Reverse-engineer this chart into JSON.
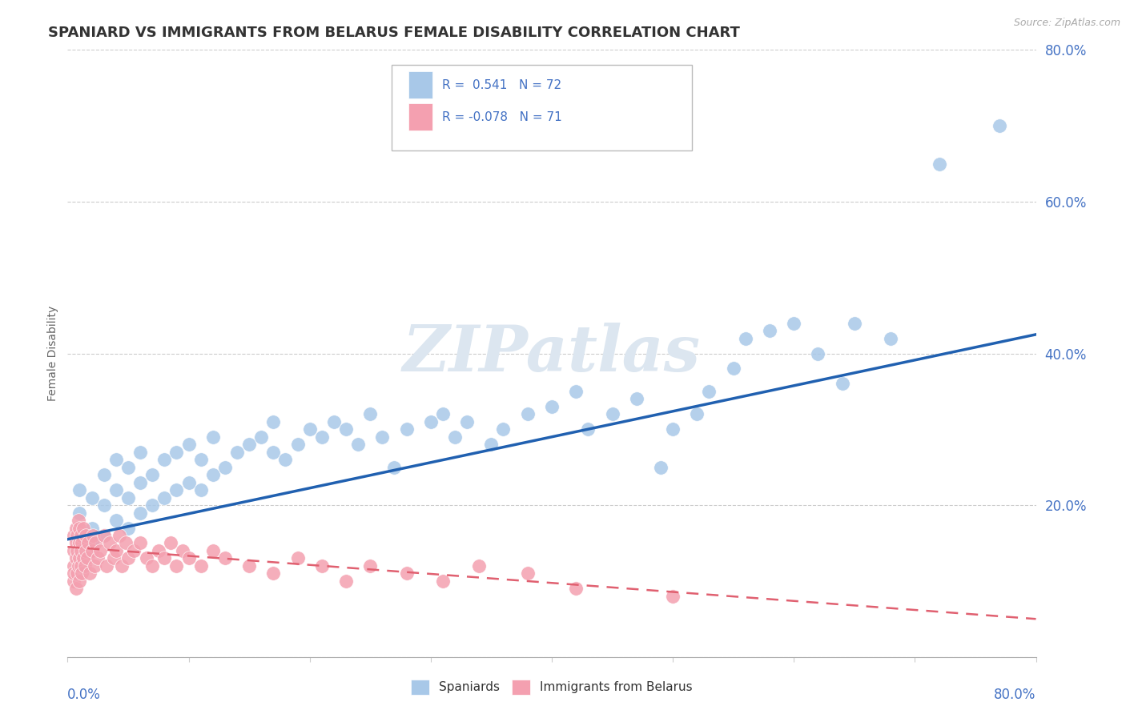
{
  "title": "SPANIARD VS IMMIGRANTS FROM BELARUS FEMALE DISABILITY CORRELATION CHART",
  "source": "Source: ZipAtlas.com",
  "ylabel": "Female Disability",
  "xlim": [
    0,
    0.8
  ],
  "ylim": [
    0,
    0.8
  ],
  "blue_color": "#a8c8e8",
  "pink_color": "#f4a0b0",
  "line_blue": "#2060b0",
  "line_pink": "#e06070",
  "axis_color": "#4472c4",
  "watermark_color": "#dce6f0",
  "legend_r1": "R =  0.541",
  "legend_n1": "N = 72",
  "legend_r2": "R = -0.078",
  "legend_n2": "N = 71",
  "spaniards_x": [
    0.01,
    0.01,
    0.02,
    0.02,
    0.02,
    0.03,
    0.03,
    0.03,
    0.04,
    0.04,
    0.04,
    0.05,
    0.05,
    0.05,
    0.06,
    0.06,
    0.06,
    0.07,
    0.07,
    0.08,
    0.08,
    0.09,
    0.09,
    0.1,
    0.1,
    0.11,
    0.11,
    0.12,
    0.12,
    0.13,
    0.14,
    0.15,
    0.16,
    0.17,
    0.17,
    0.18,
    0.19,
    0.2,
    0.21,
    0.22,
    0.23,
    0.24,
    0.25,
    0.26,
    0.27,
    0.28,
    0.3,
    0.31,
    0.32,
    0.33,
    0.35,
    0.36,
    0.38,
    0.4,
    0.42,
    0.43,
    0.45,
    0.47,
    0.49,
    0.5,
    0.52,
    0.53,
    0.55,
    0.56,
    0.58,
    0.6,
    0.62,
    0.64,
    0.65,
    0.68,
    0.72,
    0.77
  ],
  "spaniards_y": [
    0.19,
    0.22,
    0.15,
    0.21,
    0.17,
    0.16,
    0.2,
    0.24,
    0.18,
    0.22,
    0.26,
    0.17,
    0.21,
    0.25,
    0.19,
    0.23,
    0.27,
    0.2,
    0.24,
    0.21,
    0.26,
    0.22,
    0.27,
    0.23,
    0.28,
    0.22,
    0.26,
    0.24,
    0.29,
    0.25,
    0.27,
    0.28,
    0.29,
    0.27,
    0.31,
    0.26,
    0.28,
    0.3,
    0.29,
    0.31,
    0.3,
    0.28,
    0.32,
    0.29,
    0.25,
    0.3,
    0.31,
    0.32,
    0.29,
    0.31,
    0.28,
    0.3,
    0.32,
    0.33,
    0.35,
    0.3,
    0.32,
    0.34,
    0.25,
    0.3,
    0.32,
    0.35,
    0.38,
    0.42,
    0.43,
    0.44,
    0.4,
    0.36,
    0.44,
    0.42,
    0.65,
    0.7
  ],
  "belarus_x": [
    0.005,
    0.005,
    0.005,
    0.005,
    0.005,
    0.007,
    0.007,
    0.007,
    0.007,
    0.008,
    0.008,
    0.008,
    0.009,
    0.009,
    0.01,
    0.01,
    0.01,
    0.01,
    0.011,
    0.011,
    0.011,
    0.012,
    0.012,
    0.013,
    0.013,
    0.014,
    0.015,
    0.015,
    0.016,
    0.017,
    0.018,
    0.02,
    0.021,
    0.022,
    0.023,
    0.025,
    0.027,
    0.03,
    0.032,
    0.035,
    0.038,
    0.04,
    0.043,
    0.045,
    0.048,
    0.05,
    0.055,
    0.06,
    0.065,
    0.07,
    0.075,
    0.08,
    0.085,
    0.09,
    0.095,
    0.1,
    0.11,
    0.12,
    0.13,
    0.15,
    0.17,
    0.19,
    0.21,
    0.23,
    0.25,
    0.28,
    0.31,
    0.34,
    0.38,
    0.42,
    0.5
  ],
  "belarus_y": [
    0.14,
    0.12,
    0.1,
    0.16,
    0.11,
    0.13,
    0.15,
    0.09,
    0.17,
    0.14,
    0.11,
    0.16,
    0.12,
    0.18,
    0.13,
    0.15,
    0.1,
    0.17,
    0.12,
    0.14,
    0.16,
    0.11,
    0.15,
    0.13,
    0.17,
    0.12,
    0.14,
    0.16,
    0.13,
    0.15,
    0.11,
    0.14,
    0.16,
    0.12,
    0.15,
    0.13,
    0.14,
    0.16,
    0.12,
    0.15,
    0.13,
    0.14,
    0.16,
    0.12,
    0.15,
    0.13,
    0.14,
    0.15,
    0.13,
    0.12,
    0.14,
    0.13,
    0.15,
    0.12,
    0.14,
    0.13,
    0.12,
    0.14,
    0.13,
    0.12,
    0.11,
    0.13,
    0.12,
    0.1,
    0.12,
    0.11,
    0.1,
    0.12,
    0.11,
    0.09,
    0.08
  ],
  "blue_line_x": [
    0.0,
    0.8
  ],
  "blue_line_y": [
    0.155,
    0.425
  ],
  "pink_line_x": [
    0.0,
    0.8
  ],
  "pink_line_y": [
    0.145,
    0.05
  ]
}
